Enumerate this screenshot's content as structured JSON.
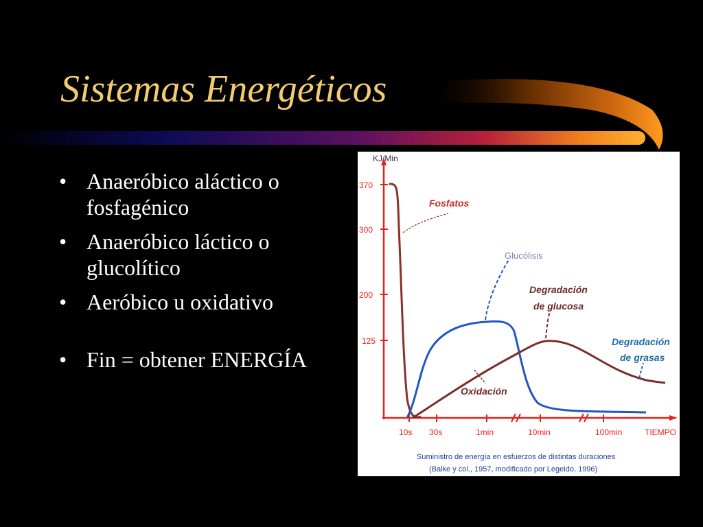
{
  "slide": {
    "title": "Sistemas Energéticos",
    "title_color": "#f2cc6e",
    "background": "#000000"
  },
  "bullets": [
    {
      "text": "Anaeróbico aláctico o fosfagénico"
    },
    {
      "text": "Anaeróbico láctico o glucolítico"
    },
    {
      "text": "Aeróbico u oxidativo"
    },
    {
      "text": "Fin = obtener ENERGÍA"
    }
  ],
  "chart_data": {
    "type": "line",
    "ylabel": "KJ/Min",
    "yticks": [
      "370",
      "300",
      "200",
      "125"
    ],
    "xticks": [
      "10s",
      "30s",
      "1min",
      "10min",
      "100min",
      "TIEMPO"
    ],
    "axis_color": "#e8201c",
    "series": [
      {
        "name": "Fosfatos",
        "color": "#8a3028"
      },
      {
        "name": "Glucólisis",
        "color": "#1f56c4"
      },
      {
        "name": "Degradación de glucosa",
        "color": "#7a2e2a"
      },
      {
        "name": "Degradación de grasas",
        "color": "#1f56c4"
      }
    ],
    "annotations": {
      "fosfatos": "Fosfatos",
      "glucolisis": "Glucólisis",
      "degradacion_glucosa_1": "Degradación",
      "degradacion_glucosa_2": "de glucosa",
      "degradacion_grasas_1": "Degradación",
      "degradacion_grasas_2": "de grasas",
      "oxidacion": "Oxidación"
    },
    "caption_1": "Suministro de energía en esfuerzos de distintas duraciones",
    "caption_2": "(Balke y col., 1957, modificado por Legeido, 1996)"
  }
}
